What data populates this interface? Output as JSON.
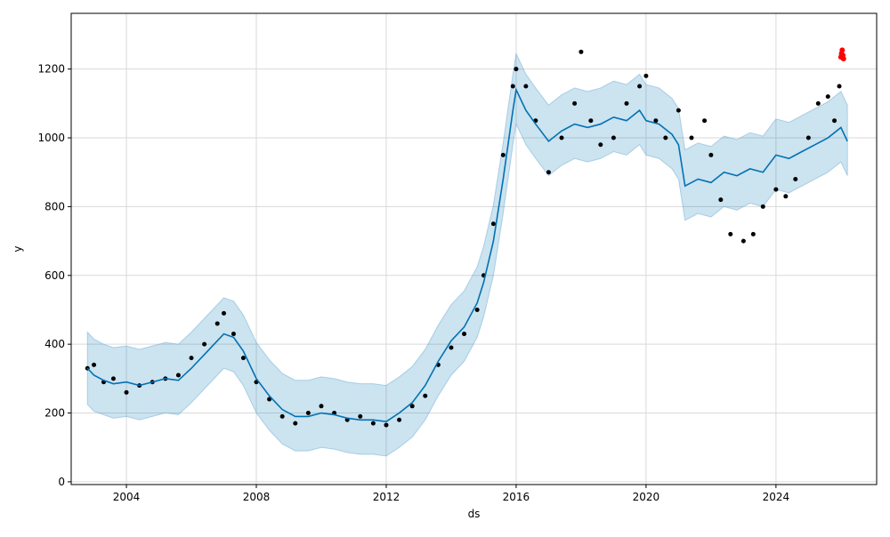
{
  "chart_data": {
    "type": "scatter",
    "title": "",
    "xlabel": "ds",
    "ylabel": "y",
    "xlim": [
      2002.3,
      2027.1
    ],
    "ylim": [
      -8,
      1362
    ],
    "x_ticks": [
      2004,
      2008,
      2012,
      2016,
      2020,
      2024
    ],
    "x_tick_labels": [
      "2004",
      "2008",
      "2012",
      "2016",
      "2020",
      "2024"
    ],
    "y_ticks": [
      0,
      200,
      400,
      600,
      800,
      1000,
      1200
    ],
    "y_tick_labels": [
      "0",
      "200",
      "400",
      "600",
      "800",
      "1000",
      "1200"
    ],
    "grid": true,
    "legend": "none",
    "colors": {
      "observed": "#000000",
      "forecast_line": "#0072B2",
      "uncertainty_band": "#0072B2",
      "recent_points": "#ff0000",
      "grid": "#d9d9d9"
    },
    "series": [
      {
        "kind": "forecast",
        "x": [
          2002.8,
          2003.0,
          2003.3,
          2003.6,
          2004.0,
          2004.4,
          2004.8,
          2005.2,
          2005.6,
          2006.0,
          2006.4,
          2006.8,
          2007.0,
          2007.3,
          2007.6,
          2008.0,
          2008.4,
          2008.8,
          2009.2,
          2009.6,
          2010.0,
          2010.4,
          2010.8,
          2011.2,
          2011.6,
          2012.0,
          2012.4,
          2012.8,
          2013.2,
          2013.6,
          2014.0,
          2014.4,
          2014.8,
          2015.0,
          2015.3,
          2015.6,
          2015.9,
          2016.0,
          2016.3,
          2016.6,
          2017.0,
          2017.4,
          2017.8,
          2018.2,
          2018.6,
          2019.0,
          2019.4,
          2019.8,
          2020.0,
          2020.4,
          2020.8,
          2021.0,
          2021.2,
          2021.6,
          2022.0,
          2022.4,
          2022.8,
          2023.2,
          2023.6,
          2024.0,
          2024.4,
          2024.8,
          2025.2,
          2025.6,
          2026.0,
          2026.2
        ],
        "yhat": [
          330,
          310,
          295,
          285,
          290,
          280,
          290,
          300,
          295,
          330,
          370,
          410,
          430,
          420,
          380,
          300,
          250,
          210,
          190,
          190,
          200,
          195,
          185,
          180,
          180,
          175,
          200,
          230,
          280,
          350,
          410,
          450,
          520,
          580,
          700,
          880,
          1080,
          1140,
          1080,
          1040,
          990,
          1020,
          1040,
          1030,
          1040,
          1060,
          1050,
          1080,
          1050,
          1040,
          1010,
          980,
          860,
          880,
          870,
          900,
          890,
          910,
          900,
          950,
          940,
          960,
          980,
          1000,
          1030,
          990
        ],
        "yhat_lower": [
          225,
          205,
          195,
          185,
          190,
          180,
          190,
          200,
          195,
          230,
          270,
          310,
          330,
          320,
          280,
          200,
          150,
          110,
          90,
          90,
          100,
          95,
          85,
          80,
          80,
          75,
          100,
          130,
          180,
          250,
          310,
          350,
          420,
          480,
          600,
          780,
          980,
          1040,
          980,
          940,
          890,
          920,
          940,
          930,
          940,
          960,
          950,
          980,
          950,
          940,
          910,
          880,
          760,
          780,
          770,
          800,
          790,
          810,
          800,
          850,
          840,
          860,
          880,
          900,
          930,
          890
        ],
        "yhat_upper": [
          435,
          415,
          400,
          390,
          395,
          385,
          395,
          405,
          400,
          435,
          475,
          515,
          535,
          525,
          485,
          405,
          355,
          315,
          295,
          295,
          305,
          300,
          290,
          285,
          285,
          280,
          305,
          335,
          385,
          455,
          515,
          555,
          625,
          685,
          805,
          985,
          1185,
          1245,
          1185,
          1145,
          1095,
          1125,
          1145,
          1135,
          1145,
          1165,
          1155,
          1185,
          1155,
          1145,
          1115,
          1085,
          965,
          985,
          975,
          1005,
          995,
          1015,
          1005,
          1055,
          1045,
          1065,
          1085,
          1105,
          1135,
          1095
        ]
      },
      {
        "kind": "observed",
        "x": [
          2002.8,
          2003.0,
          2003.3,
          2003.6,
          2004.0,
          2004.4,
          2004.8,
          2005.2,
          2005.6,
          2006.0,
          2006.4,
          2006.8,
          2007.0,
          2007.3,
          2007.6,
          2008.0,
          2008.4,
          2008.8,
          2009.2,
          2009.6,
          2010.0,
          2010.4,
          2010.8,
          2011.2,
          2011.6,
          2012.0,
          2012.4,
          2012.8,
          2013.2,
          2013.6,
          2014.0,
          2014.4,
          2014.8,
          2015.0,
          2015.3,
          2015.6,
          2015.9,
          2016.0,
          2016.3,
          2016.6,
          2017.0,
          2017.4,
          2017.8,
          2018.0,
          2018.3,
          2018.6,
          2019.0,
          2019.4,
          2019.8,
          2020.0,
          2020.3,
          2020.6,
          2021.0,
          2021.4,
          2021.8,
          2022.0,
          2022.3,
          2022.6,
          2023.0,
          2023.3,
          2023.6,
          2024.0,
          2024.3,
          2024.6,
          2025.0,
          2025.3,
          2025.6,
          2025.8,
          2025.95
        ],
        "y": [
          330,
          340,
          290,
          300,
          260,
          280,
          290,
          300,
          310,
          360,
          400,
          460,
          490,
          430,
          360,
          290,
          240,
          190,
          170,
          200,
          220,
          200,
          180,
          190,
          170,
          165,
          180,
          220,
          250,
          340,
          390,
          430,
          500,
          600,
          750,
          950,
          1150,
          1200,
          1150,
          1050,
          900,
          1000,
          1100,
          1250,
          1050,
          980,
          1000,
          1100,
          1150,
          1180,
          1050,
          1000,
          1080,
          1000,
          1050,
          950,
          820,
          720,
          700,
          720,
          800,
          850,
          830,
          880,
          1000,
          1100,
          1120,
          1050,
          1150
        ]
      },
      {
        "kind": "recent",
        "x": [
          2026.0,
          2026.02,
          2026.04,
          2026.06,
          2026.08
        ],
        "y": [
          1235,
          1245,
          1255,
          1240,
          1230
        ]
      }
    ]
  }
}
